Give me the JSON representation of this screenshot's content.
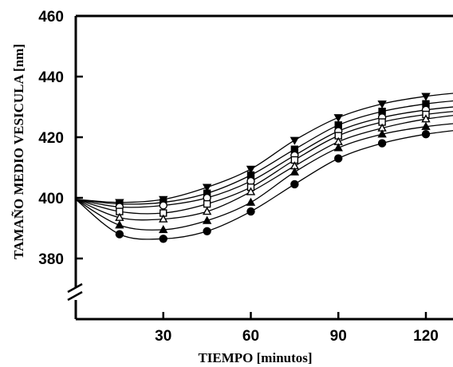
{
  "chart_data": {
    "type": "line",
    "xlabel": "TIEMPO [minutos]",
    "ylabel": "TAMAÑO MEDIO VESICULA [nm]",
    "xlim": [
      0,
      130
    ],
    "ylim": [
      360,
      460
    ],
    "y_axis_break": true,
    "xticks": [
      30,
      60,
      90,
      120
    ],
    "yticks": [
      380,
      400,
      420,
      440,
      460
    ],
    "x_tick_labels": [
      "30",
      "60",
      "90",
      "120"
    ],
    "y_tick_labels": [
      "380",
      "400",
      "420",
      "440",
      "460"
    ],
    "grid": false,
    "legend": "none",
    "x": [
      15,
      30,
      45,
      60,
      75,
      90,
      105,
      120
    ],
    "start_point": {
      "x": 0,
      "y": 399.5
    },
    "series": [
      {
        "marker": "triangle-down-filled",
        "values": [
          398.5,
          399.5,
          403.5,
          409.5,
          419,
          426.5,
          431,
          433.5
        ]
      },
      {
        "marker": "square-filled",
        "values": [
          398,
          398.5,
          401.5,
          407.5,
          416,
          424,
          428.5,
          431
        ]
      },
      {
        "marker": "circle-open",
        "values": [
          397,
          397.5,
          400,
          405.5,
          414,
          422,
          426.5,
          429
        ]
      },
      {
        "marker": "square-open",
        "values": [
          395.5,
          395,
          398,
          403.5,
          412.5,
          420.5,
          425,
          427.5
        ]
      },
      {
        "marker": "triangle-open",
        "values": [
          393.5,
          393,
          395.5,
          402,
          410.5,
          418.5,
          423,
          426
        ]
      },
      {
        "marker": "triangle-filled",
        "values": [
          391,
          389.5,
          392.5,
          398.5,
          408.5,
          416.5,
          421,
          423.5
        ]
      },
      {
        "marker": "circle-filled",
        "values": [
          388,
          386.5,
          389,
          395.5,
          404.5,
          413,
          418,
          421
        ]
      }
    ]
  }
}
